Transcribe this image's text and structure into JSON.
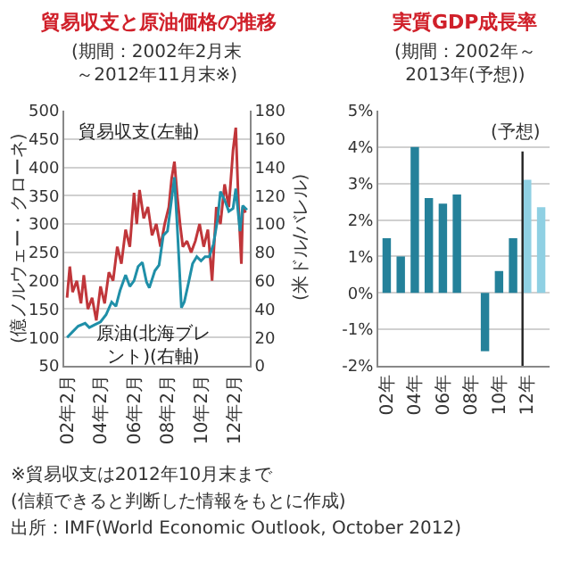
{
  "chart_data": [
    {
      "type": "line",
      "title": "貿易収支と原油価格の推移",
      "subtitle": "(期間：2002年2月末～2012年11月末※)",
      "ylabel": "(億ノルウェー・クローネ)",
      "y2label": "(米ドル/バレル)",
      "xlim": [
        "2001-12",
        "2013-01"
      ],
      "xticks": [
        {
          "value": "2002-02",
          "label": "02年2月"
        },
        {
          "value": "2004-02",
          "label": "04年2月"
        },
        {
          "value": "2006-02",
          "label": "06年2月"
        },
        {
          "value": "2008-02",
          "label": "08年2月"
        },
        {
          "value": "2010-02",
          "label": "10年2月"
        },
        {
          "value": "2012-02",
          "label": "12年2月"
        }
      ],
      "ylim": [
        50,
        500
      ],
      "yticks": [
        50,
        100,
        150,
        200,
        250,
        300,
        350,
        400,
        450,
        500
      ],
      "y2lim": [
        0,
        180
      ],
      "y2ticks": [
        0,
        20,
        40,
        60,
        80,
        100,
        120,
        140,
        160,
        180
      ],
      "grid": "y",
      "legend": false,
      "series": [
        {
          "name": "貿易収支(左軸)",
          "color": "#c0363a",
          "x": [
            "2002-02",
            "2002-04",
            "2002-06",
            "2002-09",
            "2002-12",
            "2003-02",
            "2003-05",
            "2003-08",
            "2003-11",
            "2004-02",
            "2004-05",
            "2004-08",
            "2004-11",
            "2005-02",
            "2005-05",
            "2005-08",
            "2005-11",
            "2006-02",
            "2006-04",
            "2006-06",
            "2006-09",
            "2006-12",
            "2007-03",
            "2007-06",
            "2007-09",
            "2007-12",
            "2008-03",
            "2008-05",
            "2008-07",
            "2008-09",
            "2008-11",
            "2009-01",
            "2009-04",
            "2009-07",
            "2009-10",
            "2010-01",
            "2010-04",
            "2010-07",
            "2010-10",
            "2011-01",
            "2011-04",
            "2011-07",
            "2011-10",
            "2012-01",
            "2012-03",
            "2012-05",
            "2012-07",
            "2012-08",
            "2012-10"
          ],
          "values": [
            170,
            225,
            180,
            200,
            160,
            210,
            150,
            170,
            130,
            190,
            160,
            215,
            200,
            260,
            230,
            290,
            260,
            355,
            300,
            360,
            310,
            330,
            280,
            300,
            260,
            300,
            330,
            380,
            410,
            350,
            300,
            260,
            270,
            250,
            270,
            300,
            260,
            290,
            200,
            330,
            300,
            370,
            330,
            430,
            470,
            330,
            230,
            330,
            320
          ]
        },
        {
          "name": "原油(北海ブレント)(右軸)",
          "color": "#1f8fa8",
          "axis": "y2",
          "x": [
            "2002-02",
            "2002-06",
            "2002-10",
            "2003-03",
            "2003-06",
            "2003-10",
            "2004-02",
            "2004-06",
            "2004-10",
            "2005-01",
            "2005-04",
            "2005-08",
            "2005-11",
            "2006-02",
            "2006-05",
            "2006-08",
            "2006-11",
            "2007-01",
            "2007-05",
            "2007-08",
            "2007-11",
            "2008-02",
            "2008-04",
            "2008-07",
            "2008-09",
            "2008-12",
            "2009-02",
            "2009-05",
            "2009-08",
            "2009-11",
            "2010-02",
            "2010-05",
            "2010-08",
            "2010-11",
            "2011-02",
            "2011-04",
            "2011-07",
            "2011-10",
            "2012-01",
            "2012-03",
            "2012-06",
            "2012-08",
            "2012-11"
          ],
          "values": [
            20,
            24,
            28,
            30,
            27,
            29,
            31,
            36,
            45,
            42,
            53,
            64,
            56,
            60,
            70,
            73,
            59,
            55,
            67,
            71,
            92,
            95,
            110,
            133,
            98,
            41,
            45,
            58,
            72,
            77,
            74,
            77,
            77,
            86,
            104,
            123,
            117,
            109,
            111,
            125,
            95,
            113,
            110
          ]
        }
      ],
      "annotations": [
        "※貿易収支は2012年10月末まで",
        "(信頼できると判断した情報をもとに作成)"
      ]
    },
    {
      "type": "bar",
      "title": "実質GDP成長率",
      "subtitle": "(期間：2002年～2013年(予想))",
      "categories": [
        "02年",
        null,
        "04年",
        null,
        "06年",
        null,
        "08年",
        null,
        "10年",
        null,
        "12年",
        null
      ],
      "values": [
        1.5,
        1.0,
        4.0,
        2.6,
        2.45,
        2.7,
        0.0,
        -1.6,
        0.6,
        1.5,
        3.1,
        2.35
      ],
      "colors": [
        "#24819a",
        "#24819a",
        "#24819a",
        "#24819a",
        "#24819a",
        "#24819a",
        "#24819a",
        "#24819a",
        "#24819a",
        "#24819a",
        "#8fd0e3",
        "#8fd0e3"
      ],
      "ylim": [
        -2,
        5
      ],
      "yticks": [
        {
          "value": -2,
          "label": "-2%"
        },
        {
          "value": -1,
          "label": "-1%"
        },
        {
          "value": 0,
          "label": "0%"
        },
        {
          "value": 1,
          "label": "1%"
        },
        {
          "value": 2,
          "label": "2%"
        },
        {
          "value": 3,
          "label": "3%"
        },
        {
          "value": 4,
          "label": "4%"
        },
        {
          "value": 5,
          "label": "5%"
        }
      ],
      "grid": "y",
      "annotations": [
        "(予想)",
        "出所：IMF(World Economic Outlook, October 2012)"
      ]
    }
  ]
}
